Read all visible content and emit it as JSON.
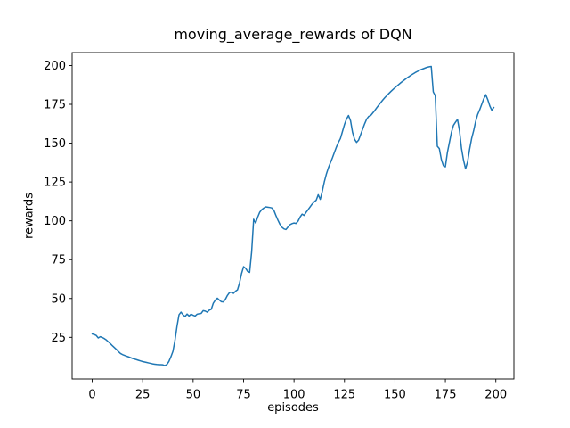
{
  "chart_data": {
    "type": "line",
    "title": "moving_average_rewards of DQN",
    "xlabel": "episodes",
    "ylabel": "rewards",
    "x_ticks": [
      0,
      25,
      50,
      75,
      100,
      125,
      150,
      175,
      200
    ],
    "y_ticks": [
      25,
      50,
      75,
      100,
      125,
      150,
      175,
      200
    ],
    "xlim": [
      -9.95,
      208.95
    ],
    "ylim": [
      -1.8,
      208.3
    ],
    "grid": false,
    "legend_visible": false,
    "line_color": "#1f77b4",
    "axis_color": "#000000",
    "background_color": "#ffffff",
    "series": [
      {
        "name": "moving_average_rewards",
        "x_start": 0,
        "x_step": 1,
        "values": [
          27.2,
          26.8,
          26.2,
          24.6,
          25.4,
          24.9,
          24.2,
          23.3,
          22.1,
          20.9,
          19.6,
          18.4,
          17.2,
          15.8,
          14.6,
          13.9,
          13.4,
          12.9,
          12.4,
          11.9,
          11.4,
          11.0,
          10.6,
          10.2,
          9.8,
          9.4,
          9.1,
          8.8,
          8.5,
          8.2,
          7.9,
          7.7,
          7.5,
          7.4,
          7.4,
          7.3,
          6.8,
          7.5,
          9.5,
          12.5,
          16.0,
          23.0,
          32.0,
          39.5,
          41.2,
          39.5,
          38.4,
          40.0,
          38.7,
          39.9,
          39.2,
          38.7,
          39.9,
          40.2,
          40.4,
          42.2,
          41.9,
          41.2,
          42.5,
          43.1,
          47.0,
          48.9,
          50.2,
          49.0,
          47.9,
          47.8,
          49.5,
          52.0,
          53.8,
          54.0,
          53.3,
          54.7,
          55.6,
          60.0,
          66.0,
          70.5,
          69.5,
          67.5,
          66.8,
          80.0,
          101.0,
          98.6,
          102.4,
          105.5,
          107.2,
          108.2,
          109.0,
          108.8,
          108.6,
          108.3,
          106.8,
          103.5,
          100.5,
          97.8,
          95.9,
          94.8,
          94.4,
          96.0,
          97.5,
          98.2,
          98.6,
          98.3,
          99.8,
          102.4,
          104.3,
          103.5,
          105.5,
          107.2,
          109.0,
          110.8,
          112.2,
          113.3,
          116.8,
          113.8,
          119.0,
          125.0,
          130.0,
          134.0,
          137.3,
          140.5,
          144.0,
          147.5,
          150.5,
          153.0,
          157.5,
          162.0,
          165.5,
          167.8,
          164.5,
          157.0,
          152.5,
          150.5,
          152.0,
          155.5,
          159.0,
          162.5,
          165.5,
          167.2,
          167.8,
          169.4,
          171.0,
          172.8,
          174.5,
          176.2,
          177.8,
          179.3,
          180.7,
          182.0,
          183.3,
          184.5,
          185.7,
          186.8,
          187.9,
          189.0,
          190.0,
          191.0,
          192.0,
          192.9,
          193.8,
          194.6,
          195.4,
          196.1,
          196.8,
          197.4,
          197.9,
          198.4,
          198.9,
          199.2,
          199.4,
          183.0,
          180.5,
          148.0,
          146.5,
          139.5,
          135.5,
          134.8,
          144.0,
          150.5,
          157.0,
          161.5,
          163.5,
          165.3,
          158.0,
          146.5,
          139.0,
          133.5,
          138.0,
          146.0,
          153.0,
          158.0,
          164.0,
          168.5,
          171.5,
          175.0,
          178.5,
          181.2,
          178.0,
          174.0,
          171.2,
          173.0
        ]
      }
    ]
  }
}
